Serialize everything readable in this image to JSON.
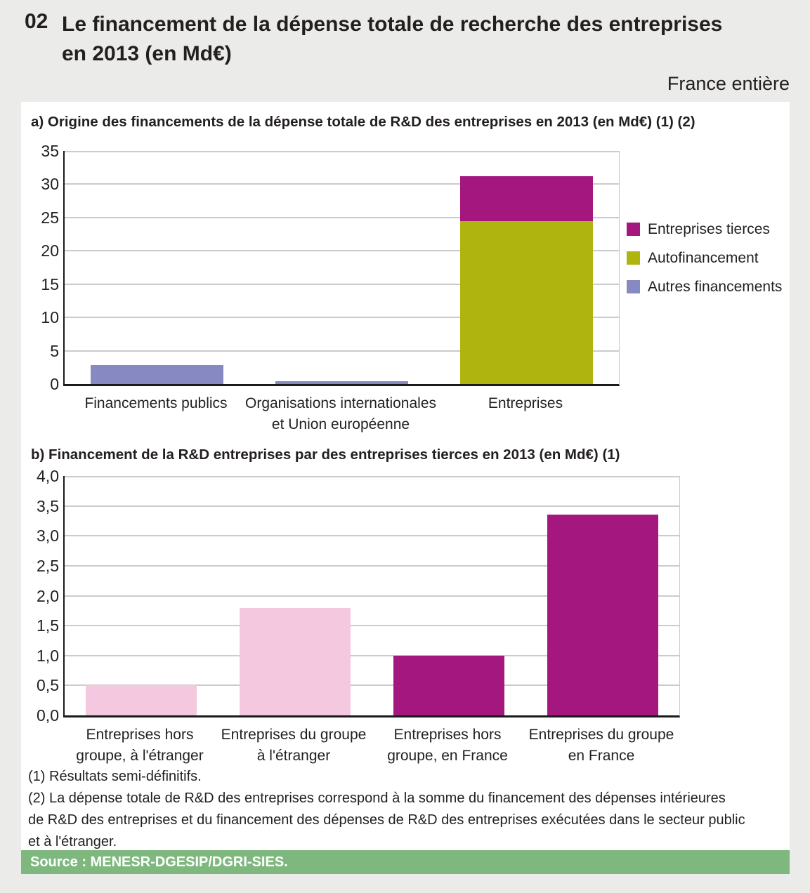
{
  "page": {
    "number": "02",
    "title_line1": "Le financement de la dépense totale de recherche des entreprises",
    "title_line2": "en 2013 (en Md€)",
    "region": "France entière"
  },
  "colors": {
    "page_bg": "#EBEBE9",
    "panel_bg": "#FFFFFF",
    "magenta": "#A4177F",
    "olive": "#AFB40E",
    "periwinkle": "#8789C2",
    "pink": "#F4C8DF",
    "source_green": "#7EB87E",
    "gridline": "#CBCBCB",
    "axis": "#1A1A1A",
    "text": "#231F20"
  },
  "chart_data": [
    {
      "id": "a",
      "type": "bar",
      "stacked": true,
      "title": "a) Origine des financements de la dépense totale de R&D des entreprises en 2013 (en Md€) (1) (2)",
      "categories": [
        "Financements publics",
        "Organisations internationales\net Union européenne",
        "Entreprises"
      ],
      "series": [
        {
          "name": "Autres financements",
          "color": "periwinkle",
          "values": [
            2.8,
            0.4,
            0
          ]
        },
        {
          "name": "Autofinancement",
          "color": "olive",
          "values": [
            0,
            0,
            24.5
          ]
        },
        {
          "name": "Entreprises tierces",
          "color": "magenta",
          "values": [
            0,
            0,
            6.7
          ]
        }
      ],
      "ylim": [
        0,
        35
      ],
      "ytick_step": 5,
      "ytick_labels": [
        "0",
        "5",
        "10",
        "15",
        "20",
        "25",
        "30",
        "35"
      ],
      "grid": true,
      "legend_position": "right",
      "legend": [
        {
          "label": "Entreprises tierces",
          "color": "magenta"
        },
        {
          "label": "Autofinancement",
          "color": "olive"
        },
        {
          "label": "Autres financements",
          "color": "periwinkle"
        }
      ]
    },
    {
      "id": "b",
      "type": "bar",
      "stacked": false,
      "title": "b) Financement de la R&D entreprises par des entreprises tierces en 2013 (en Md€) (1)",
      "categories": [
        "Entreprises hors\ngroupe, à l'étranger",
        "Entreprises du groupe\nà l'étranger",
        "Entreprises hors\ngroupe, en France",
        "Entreprises du groupe\nen France"
      ],
      "values": [
        0.5,
        1.8,
        1.0,
        3.35
      ],
      "bar_colors": [
        "pink",
        "pink",
        "magenta",
        "magenta"
      ],
      "ylim": [
        0,
        4
      ],
      "ytick_step": 0.5,
      "ytick_labels": [
        "0,0",
        "0,5",
        "1,0",
        "1,5",
        "2,0",
        "2,5",
        "3,0",
        "3,5",
        "4,0"
      ],
      "grid": true,
      "legend_position": "none"
    }
  ],
  "footnotes": [
    "(1) Résultats semi-définitifs.",
    "(2) La dépense totale de R&D des entreprises correspond à la somme du financement des dépenses intérieures",
    "de R&D des entreprises et du financement des dépenses de R&D des entreprises exécutées dans le secteur public",
    " et à l'étranger."
  ],
  "source": "Source : MENESR-DGESIP/DGRI-SIES."
}
